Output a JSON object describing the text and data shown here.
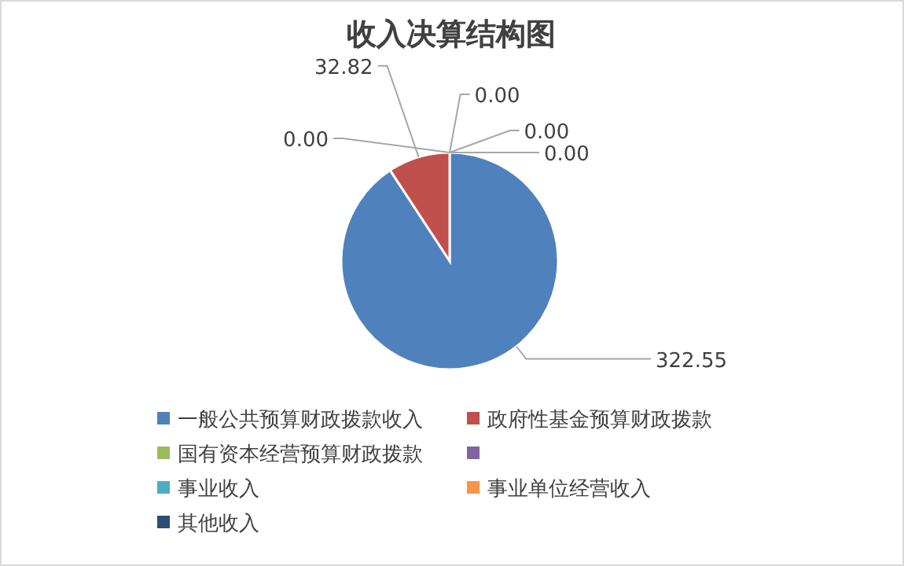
{
  "chart_data": {
    "type": "pie",
    "title": "收入决算结构图",
    "categories": [
      "一般公共预算财政拨款收入",
      "政府性基金预算财政拨款",
      "国有资本经营预算财政拨款",
      null,
      "事业收入",
      "事业单位经营收入",
      "其他收入"
    ],
    "values": [
      322.55,
      32.82,
      0.0,
      0.0,
      0.0,
      0.0,
      0.0
    ],
    "value_labels": [
      "322.55",
      "32.82",
      "0.00",
      null,
      "0.00",
      "0.00",
      "0.00"
    ],
    "colors": [
      "#4f81bd",
      "#c0504d",
      "#9bbb59",
      "#8064a2",
      "#4bacc6",
      "#f79646",
      "#2c4d75"
    ],
    "legend": "bottom"
  }
}
